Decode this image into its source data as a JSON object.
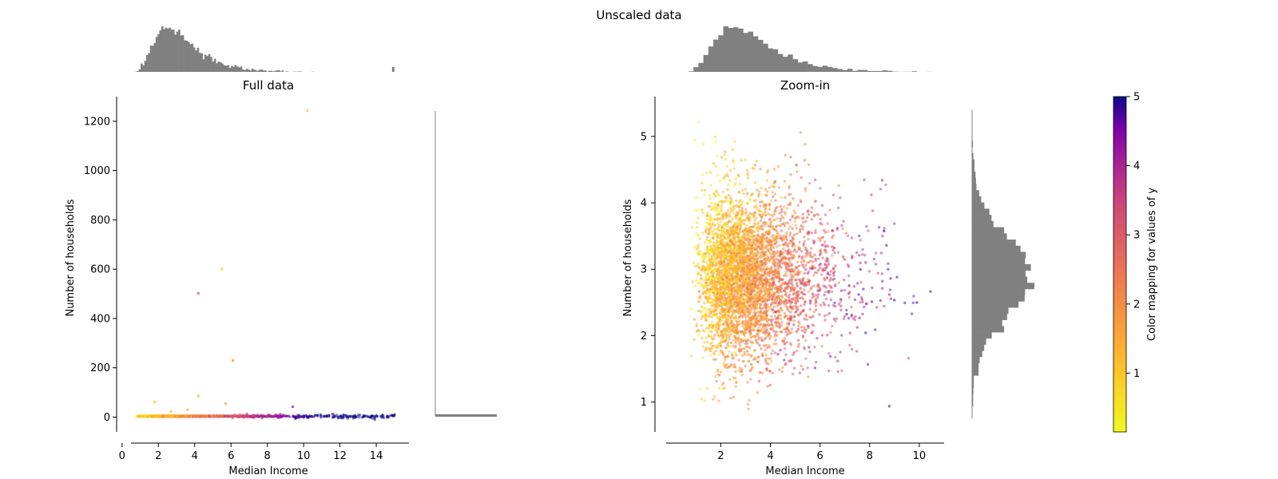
{
  "figure": {
    "suptitle": "Unscaled data"
  },
  "colorbar": {
    "label": "Color mapping for values of y",
    "ticks": [
      "1",
      "2",
      "3",
      "4",
      "5"
    ],
    "range": [
      0.15,
      5.0
    ]
  },
  "chart_data": [
    {
      "type": "scatter",
      "title": "Full data",
      "xlabel": "Median Income",
      "ylabel": "Number of households",
      "xlim": [
        -0.3,
        15.8
      ],
      "ylim": [
        -60,
        1300
      ],
      "xticks": [
        0,
        2,
        4,
        6,
        8,
        10,
        12,
        14
      ],
      "yticks": [
        0,
        200,
        400,
        600,
        800,
        1000,
        1200
      ],
      "outliers": [
        {
          "x": 10.2,
          "y": 1243,
          "c": 1.0
        },
        {
          "x": 5.5,
          "y": 600,
          "c": 0.9
        },
        {
          "x": 4.2,
          "y": 502,
          "c": 3.0
        },
        {
          "x": 6.1,
          "y": 230,
          "c": 2.0
        },
        {
          "x": 4.2,
          "y": 85,
          "c": 1.2
        },
        {
          "x": 5.7,
          "y": 55,
          "c": 1.5
        },
        {
          "x": 9.4,
          "y": 42,
          "c": 4.2
        },
        {
          "x": 1.8,
          "y": 62,
          "c": 1.0
        },
        {
          "x": 3.6,
          "y": 30,
          "c": 1.3
        },
        {
          "x": 2.7,
          "y": 22,
          "c": 1.1
        },
        {
          "x": 15.0,
          "y": 10,
          "c": 5.0
        },
        {
          "x": 14.9,
          "y": 5,
          "c": 5.0
        },
        {
          "x": 11.6,
          "y": 12,
          "c": 4.8
        }
      ],
      "band": {
        "x_min": 0.5,
        "x_max": 15.0,
        "y": 3.0
      },
      "marginal_x_hist": "top",
      "marginal_y_hist": "right"
    },
    {
      "type": "scatter",
      "title": "Zoom-in",
      "xlabel": "Median Income",
      "ylabel": "Number of households",
      "xlim": [
        -0.2,
        11.0
      ],
      "ylim": [
        0.55,
        5.6
      ],
      "xticks": [
        2,
        4,
        6,
        8,
        10
      ],
      "yticks": [
        1,
        2,
        3,
        4,
        5
      ],
      "distribution": {
        "x_mode": 3.0,
        "x_range": [
          0.5,
          10.5
        ],
        "y_mode": 2.7,
        "y_range": [
          0.75,
          5.4
        ],
        "n_points": 4500
      },
      "marginal_x_hist": "top",
      "marginal_y_hist": "right"
    }
  ]
}
